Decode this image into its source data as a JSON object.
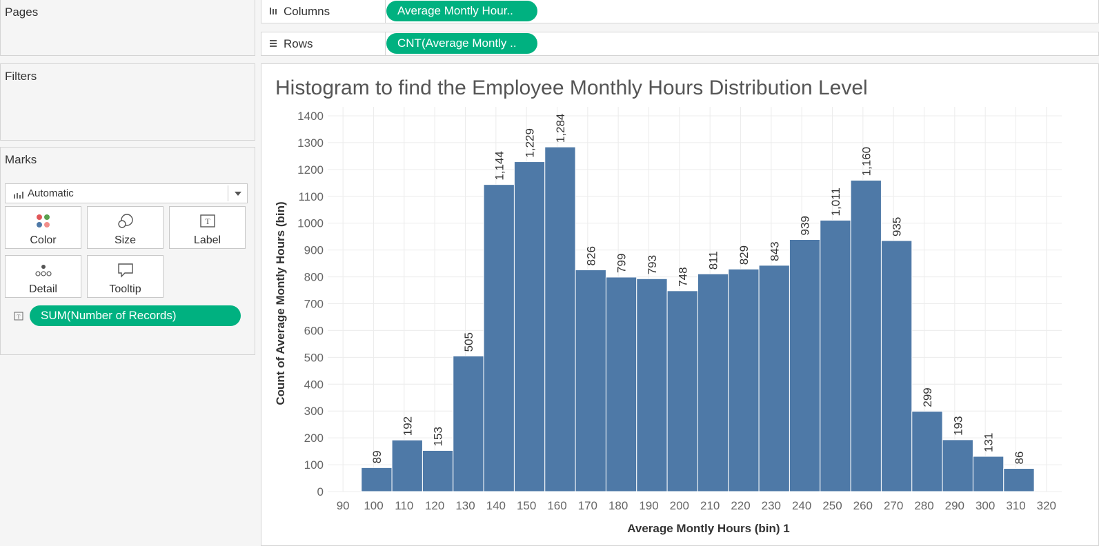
{
  "panels": {
    "pages": "Pages",
    "filters": "Filters",
    "marks": "Marks"
  },
  "marks": {
    "type": "Automatic",
    "buttons": [
      {
        "label": "Color",
        "icon": "color-dots-icon"
      },
      {
        "label": "Size",
        "icon": "size-circles-icon"
      },
      {
        "label": "Label",
        "icon": "label-text-icon"
      },
      {
        "label": "Detail",
        "icon": "detail-dots-icon"
      },
      {
        "label": "Tooltip",
        "icon": "tooltip-bubble-icon"
      }
    ],
    "field_pill": "SUM(Number of Records)"
  },
  "shelves": {
    "columns": {
      "label": "Columns",
      "pill": "Average Montly Hour.."
    },
    "rows": {
      "label": "Rows",
      "pill": "CNT(Average Montly .."
    }
  },
  "colors": {
    "pill": "#00b180",
    "bar": "#4e79a7",
    "grid": "#ececec"
  },
  "chart_data": {
    "type": "bar",
    "title": "Histogram to find the Employee Monthly Hours Distribution Level",
    "xlabel": "Average Montly Hours (bin) 1",
    "ylabel": "Count of Average Montly Hours (bin)",
    "bin_starts": [
      96,
      106,
      116,
      126,
      136,
      146,
      156,
      166,
      176,
      186,
      196,
      206,
      216,
      226,
      236,
      246,
      256,
      266,
      276,
      286,
      296,
      306
    ],
    "bin_width": 10,
    "values": [
      89,
      192,
      153,
      505,
      1144,
      1229,
      1284,
      826,
      799,
      793,
      748,
      811,
      829,
      843,
      939,
      1011,
      1160,
      935,
      299,
      193,
      131,
      86
    ],
    "value_labels": [
      "89",
      "192",
      "153",
      "505",
      "1,144",
      "1,229",
      "1,284",
      "826",
      "799",
      "793",
      "748",
      "811",
      "829",
      "843",
      "939",
      "1,011",
      "1,160",
      "935",
      "299",
      "193",
      "131",
      "86"
    ],
    "x_ticks": [
      90,
      100,
      110,
      120,
      130,
      140,
      150,
      160,
      170,
      180,
      190,
      200,
      210,
      220,
      230,
      240,
      250,
      260,
      270,
      280,
      290,
      300,
      310,
      320
    ],
    "y_ticks": [
      0,
      100,
      200,
      300,
      400,
      500,
      600,
      700,
      800,
      900,
      1000,
      1100,
      1200,
      1300,
      1400
    ],
    "xlim": [
      85,
      325
    ],
    "ylim": [
      0,
      1400
    ],
    "grid": true,
    "bar_color": "#4e79a7"
  }
}
